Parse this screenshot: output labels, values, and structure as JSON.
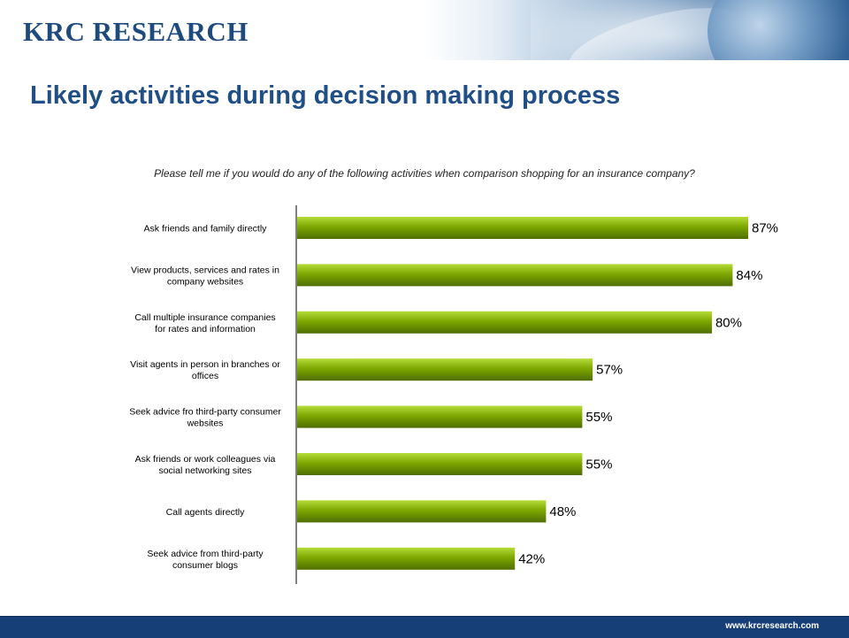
{
  "header": {
    "brand": "KRC RESEARCH"
  },
  "title": "Likely activities during decision making process",
  "question": "Please tell me if you would do any of the following activities when comparison shopping for an insurance company?",
  "footer": {
    "url": "www.krcresearch.com"
  },
  "colors": {
    "bar": "#7da800",
    "bar_light": "#b6dc3a",
    "bar_dark": "#4e6e00",
    "brand_blue": "#1f4f86",
    "footer_blue": "#173f77"
  },
  "chart_data": {
    "type": "bar",
    "orientation": "horizontal",
    "categories": [
      [
        "Ask friends and family directly"
      ],
      [
        "View products, services and rates in",
        "company websites"
      ],
      [
        "Call multiple insurance companies",
        "for rates and information"
      ],
      [
        "Visit agents in person in branches or",
        "offices"
      ],
      [
        "Seek advice fro third-party consumer",
        "websites"
      ],
      [
        "Ask friends or work colleagues via",
        "social networking sites"
      ],
      [
        "Call agents directly"
      ],
      [
        "Seek advice from third-party",
        "consumer blogs"
      ]
    ],
    "values": [
      87,
      84,
      80,
      57,
      55,
      55,
      48,
      42
    ],
    "value_labels": [
      "87%",
      "84%",
      "80%",
      "57%",
      "55%",
      "55%",
      "48%",
      "42%"
    ],
    "xlim": [
      0,
      87
    ],
    "grid": false,
    "legend": "none"
  }
}
